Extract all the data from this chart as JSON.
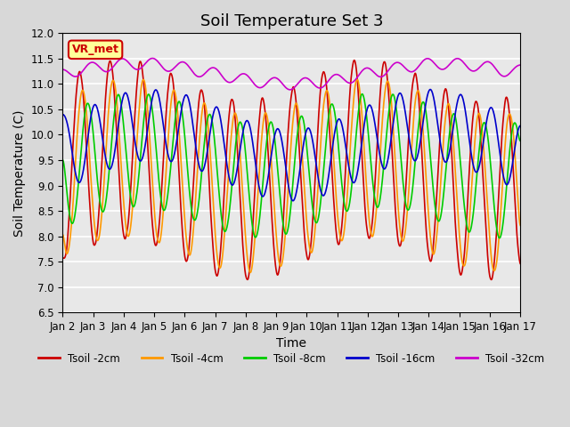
{
  "title": "Soil Temperature Set 3",
  "xlabel": "Time",
  "ylabel": "Soil Temperature (C)",
  "ylim": [
    6.5,
    12.0
  ],
  "xlim": [
    0,
    15
  ],
  "yticks": [
    6.5,
    7.0,
    7.5,
    8.0,
    8.5,
    9.0,
    9.5,
    10.0,
    10.5,
    11.0,
    11.5,
    12.0
  ],
  "xtick_labels": [
    "Jan 2",
    "Jan 3",
    "Jan 4",
    "Jan 5",
    "Jan 6",
    "Jan 7",
    "Jan 8",
    "Jan 9",
    "Jan 10",
    "Jan 11",
    "Jan 12",
    "Jan 13",
    "Jan 14",
    "Jan 15",
    "Jan 16",
    "Jan 17"
  ],
  "series": [
    {
      "label": "Tsoil -2cm",
      "color": "#cc0000"
    },
    {
      "label": "Tsoil -4cm",
      "color": "#ff9900"
    },
    {
      "label": "Tsoil -8cm",
      "color": "#00cc00"
    },
    {
      "label": "Tsoil -16cm",
      "color": "#0000cc"
    },
    {
      "label": "Tsoil -32cm",
      "color": "#cc00cc"
    }
  ],
  "annotation_text": "VR_met",
  "annotation_color": "#cc0000",
  "annotation_bg": "#ffff99",
  "background_color": "#e8e8e8",
  "plot_bg": "#f0f0f0",
  "grid_color": "#ffffff",
  "title_fontsize": 13,
  "label_fontsize": 10,
  "tick_fontsize": 8.5
}
